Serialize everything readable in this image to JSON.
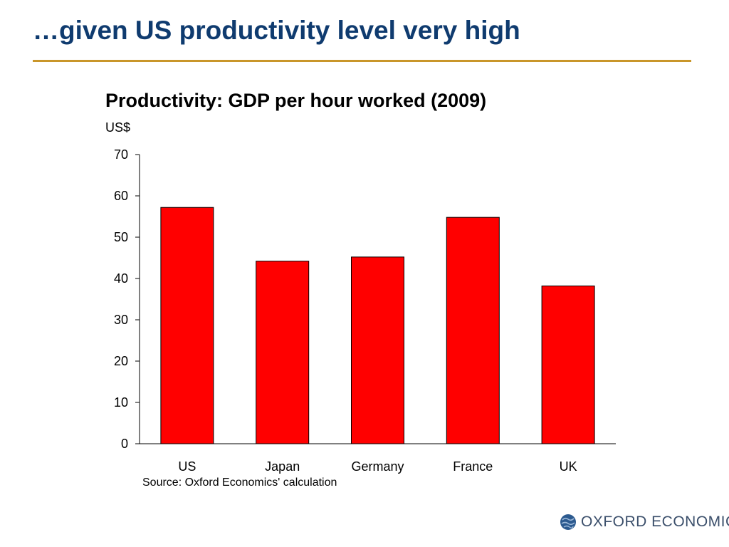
{
  "slide": {
    "title": "…given US productivity level very high"
  },
  "chart_data": {
    "type": "bar",
    "title": "Productivity: GDP per hour worked (2009)",
    "ylabel": "US$",
    "xlabel": "",
    "categories": [
      "US",
      "Japan",
      "Germany",
      "France",
      "UK"
    ],
    "values": [
      57.2,
      44.2,
      45.2,
      54.8,
      38.2
    ],
    "ylim": [
      0,
      70
    ],
    "yticks": [
      0,
      10,
      20,
      30,
      40,
      50,
      60,
      70
    ],
    "bar_color": "#ff0000",
    "grid": false,
    "legend": "none"
  },
  "source": "Source: Oxford Economics' calculation",
  "logo": {
    "text": "OXFORD ECONOMICS",
    "icon": "globe-icon"
  },
  "colors": {
    "title": "#0f3b6f",
    "rule": "#c9962a",
    "bar": "#ff0000"
  }
}
